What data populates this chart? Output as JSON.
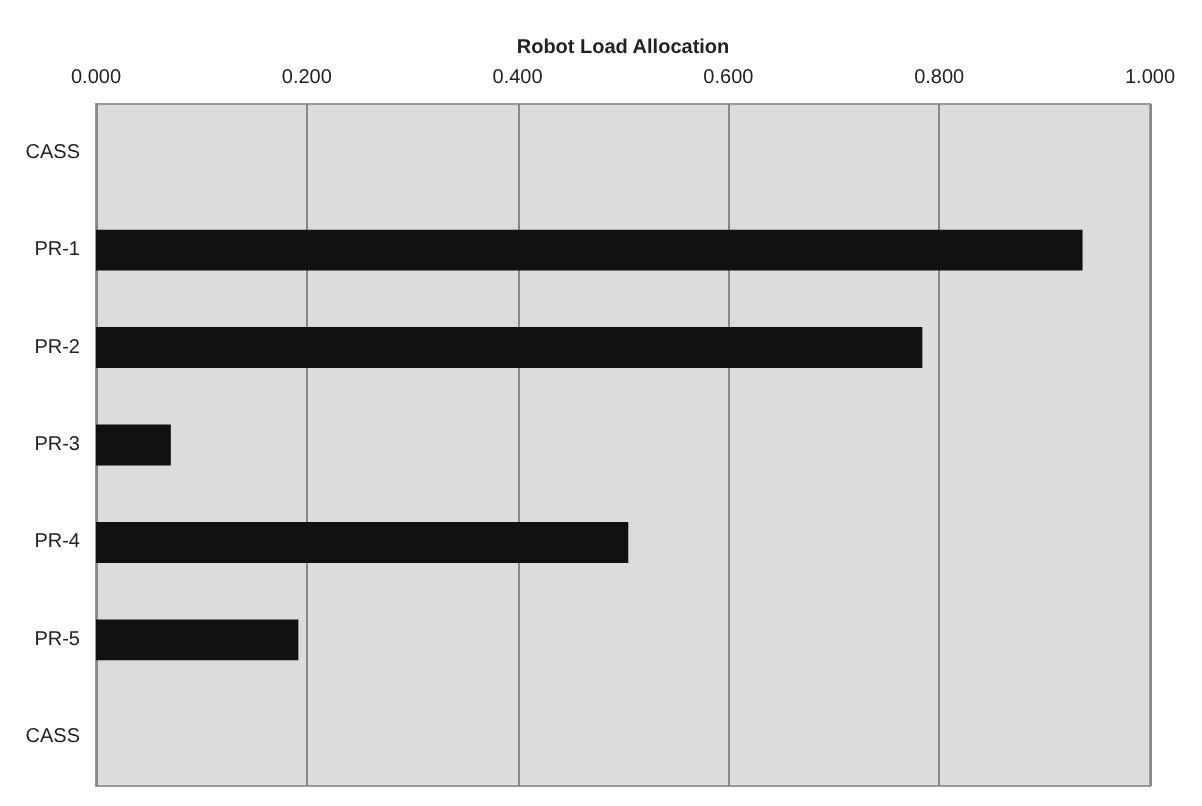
{
  "chart_data": {
    "type": "bar",
    "orientation": "horizontal",
    "xlabel": "Robot Load Allocation",
    "categories": [
      "CASS",
      "PR-1",
      "PR-2",
      "PR-3",
      "PR-4",
      "PR-5",
      "CASS"
    ],
    "values": [
      null,
      0.936,
      0.784,
      0.071,
      0.505,
      0.192,
      null
    ],
    "color": "#111111",
    "xlim": [
      0,
      1
    ],
    "xticks": [
      {
        "value": 0,
        "label": "0.000"
      },
      {
        "value": 0.2,
        "label": "0.200"
      },
      {
        "value": 0.4,
        "label": "0.400"
      },
      {
        "value": 0.6,
        "label": "0.600"
      },
      {
        "value": 0.8,
        "label": "0.800"
      },
      {
        "value": 1,
        "label": "1.000"
      }
    ],
    "grid": "x"
  }
}
